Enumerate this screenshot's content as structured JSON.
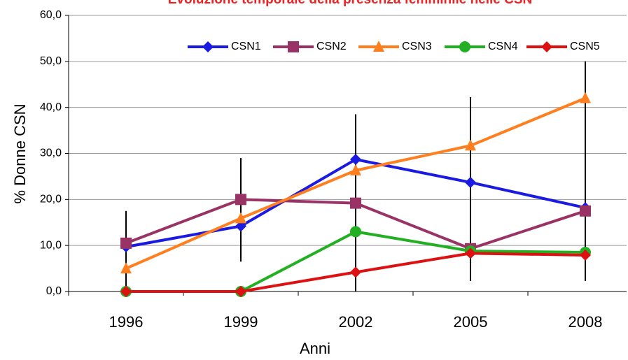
{
  "chart_data": {
    "type": "line",
    "title": "Evoluzione temporale della presenza femminile nelle CSN",
    "x_label": "Anni",
    "y_label": "% Donne CSN",
    "categories": [
      "1996",
      "1999",
      "2002",
      "2005",
      "2008"
    ],
    "series": [
      {
        "name": "CSN1",
        "color": "#1a1ae0",
        "marker": "diamond",
        "values": [
          9.7,
          14.2,
          28.7,
          23.7,
          18.2
        ]
      },
      {
        "name": "CSN2",
        "color": "#993366",
        "marker": "square",
        "values": [
          10.5,
          20.0,
          19.2,
          9.3,
          17.5
        ]
      },
      {
        "name": "CSN3",
        "color": "#ff7f1e",
        "marker": "triangle",
        "values": [
          5.0,
          15.9,
          26.3,
          31.7,
          42.0
        ]
      },
      {
        "name": "CSN4",
        "color": "#22b022",
        "marker": "circle",
        "values": [
          0,
          0,
          13.0,
          8.8,
          8.5
        ]
      },
      {
        "name": "CSN5",
        "color": "#dd1111",
        "marker": "diamond",
        "values": [
          0,
          0,
          4.2,
          8.3,
          7.9
        ]
      }
    ],
    "error_bars": {
      "low": [
        0,
        6.5,
        0,
        2.3,
        2.3
      ],
      "high": [
        17.5,
        29,
        38.5,
        42.2,
        50
      ]
    },
    "ylim": [
      0,
      60
    ],
    "yticks": [
      {
        "value": 0,
        "label": "0,0"
      },
      {
        "value": 10,
        "label": "10,0"
      },
      {
        "value": 20,
        "label": "20,0"
      },
      {
        "value": 30,
        "label": "30,0"
      },
      {
        "value": 40,
        "label": "40,0"
      },
      {
        "value": 50,
        "label": "50,0"
      },
      {
        "value": 60,
        "label": "60,0"
      }
    ],
    "grid": true,
    "legend": "top-right"
  }
}
